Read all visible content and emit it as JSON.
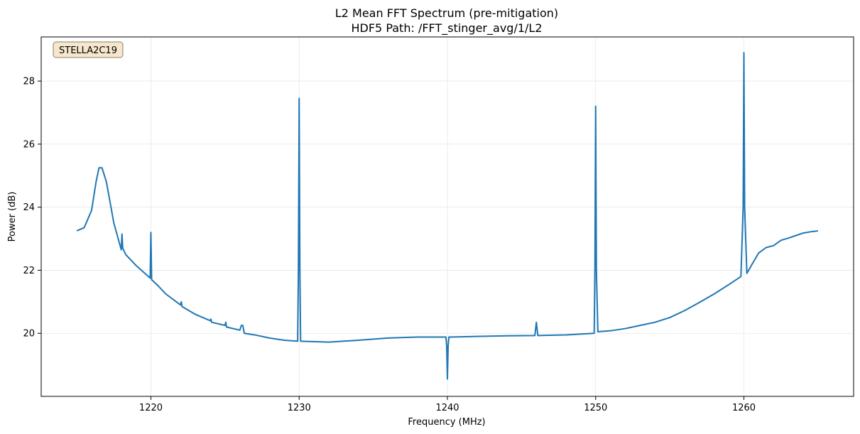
{
  "chart_data": {
    "type": "line",
    "title": "L2 Mean FFT Spectrum (pre-mitigation)",
    "subtitle": "HDF5 Path: /FFT_stinger_avg/1/L2",
    "xlabel": "Frequency (MHz)",
    "ylabel": "Power (dB)",
    "xlim": [
      1212.6,
      1267.4
    ],
    "ylim": [
      18.0,
      29.4
    ],
    "xticks": [
      1220,
      1230,
      1240,
      1250,
      1260
    ],
    "yticks": [
      20,
      22,
      24,
      26,
      28
    ],
    "grid": true,
    "annotation": "STELLA2C19",
    "line_color": "#1f77b4",
    "annotation_bg": "#f5e6cc",
    "series": [
      {
        "x": [
          1215.0,
          1215.5,
          1216.0,
          1216.3,
          1216.5,
          1216.7,
          1217.0,
          1217.5,
          1218.0,
          1218.05,
          1218.1,
          1218.15,
          1218.3,
          1219.0,
          1219.95,
          1220.0,
          1220.05,
          1220.5,
          1221.0,
          1222.0,
          1222.05,
          1222.1,
          1223.0,
          1224.0,
          1224.05,
          1224.1,
          1225.0,
          1225.05,
          1225.1,
          1226.0,
          1226.1,
          1226.2,
          1226.3,
          1227.0,
          1228.0,
          1229.0,
          1229.9,
          1229.95,
          1230.0,
          1230.05,
          1230.1,
          1232.0,
          1234.0,
          1236.0,
          1238.0,
          1239.9,
          1239.95,
          1240.0,
          1240.05,
          1240.1,
          1242.0,
          1244.0,
          1245.9,
          1246.0,
          1246.1,
          1248.0,
          1249.9,
          1249.95,
          1250.0,
          1250.05,
          1250.15,
          1251.0,
          1252.0,
          1253.0,
          1254.0,
          1255.0,
          1256.0,
          1257.0,
          1258.0,
          1259.0,
          1259.8,
          1259.95,
          1260.0,
          1260.05,
          1260.2,
          1260.5,
          1261.0,
          1261.5,
          1262.0,
          1262.5,
          1263.0,
          1263.5,
          1264.0,
          1264.5,
          1265.0
        ],
        "y": [
          23.25,
          23.35,
          23.9,
          24.8,
          25.25,
          25.25,
          24.8,
          23.5,
          22.65,
          23.15,
          22.7,
          22.65,
          22.5,
          22.15,
          21.75,
          23.2,
          21.7,
          21.5,
          21.25,
          20.9,
          21.0,
          20.85,
          20.6,
          20.4,
          20.45,
          20.35,
          20.25,
          20.35,
          20.2,
          20.1,
          20.25,
          20.25,
          20.0,
          19.95,
          19.85,
          19.78,
          19.75,
          22.0,
          27.45,
          22.0,
          19.75,
          19.72,
          19.78,
          19.85,
          19.88,
          19.88,
          19.6,
          18.55,
          19.6,
          19.88,
          19.9,
          19.92,
          19.93,
          20.35,
          19.93,
          19.95,
          20.0,
          22.0,
          27.2,
          22.0,
          20.05,
          20.08,
          20.15,
          20.25,
          20.35,
          20.5,
          20.72,
          20.98,
          21.25,
          21.55,
          21.8,
          24.0,
          28.9,
          24.0,
          21.9,
          22.15,
          22.55,
          22.72,
          22.78,
          22.95,
          23.02,
          23.1,
          23.18,
          23.22,
          23.25
        ]
      }
    ]
  }
}
